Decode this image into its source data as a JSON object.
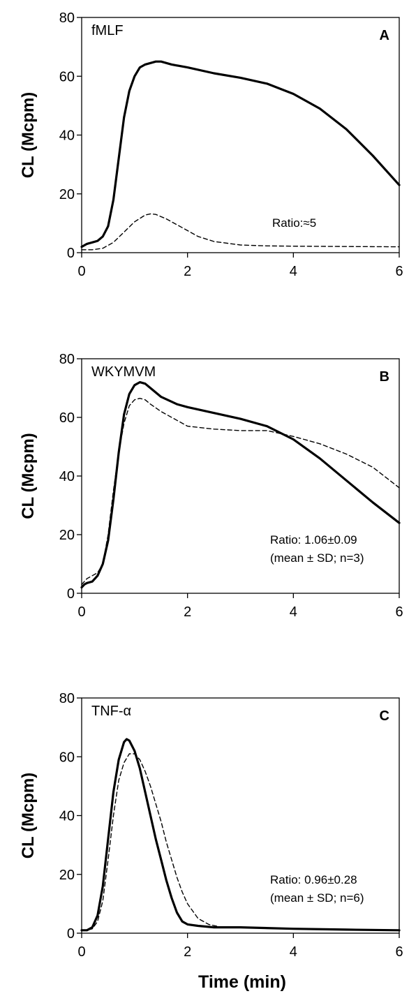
{
  "figure": {
    "xlabel": "Time (min)"
  },
  "chart_data": [
    {
      "type": "line",
      "panel": "A",
      "title": "fMLF",
      "ylabel": "CL (Mcpm)",
      "xlabel": "",
      "xlim": [
        0,
        6
      ],
      "ylim": [
        0,
        80
      ],
      "xticks": [
        0,
        2,
        4,
        6
      ],
      "yticks": [
        0,
        20,
        40,
        60,
        80
      ],
      "annotations": [
        "Ratio:≈5"
      ],
      "series": [
        {
          "style": "solid-thick",
          "x": [
            0,
            0.05,
            0.1,
            0.2,
            0.3,
            0.4,
            0.5,
            0.6,
            0.7,
            0.8,
            0.9,
            1.0,
            1.1,
            1.2,
            1.3,
            1.4,
            1.5,
            1.7,
            2.0,
            2.5,
            3.0,
            3.5,
            4.0,
            4.5,
            5.0,
            5.5,
            6.0
          ],
          "values": [
            2,
            2.5,
            3,
            3.5,
            4,
            5.5,
            9,
            18,
            32,
            46,
            55,
            60,
            63,
            64,
            64.5,
            65,
            65,
            64,
            63,
            61,
            59.5,
            57.5,
            54,
            49,
            42,
            33,
            23
          ]
        },
        {
          "style": "dashed",
          "x": [
            0,
            0.2,
            0.4,
            0.6,
            0.8,
            1.0,
            1.2,
            1.3,
            1.4,
            1.6,
            1.8,
            2.0,
            2.2,
            2.5,
            3.0,
            3.5,
            4.0,
            5.0,
            6.0
          ],
          "values": [
            1,
            1,
            1.5,
            3.5,
            7,
            10.5,
            12.8,
            13.2,
            13,
            11.5,
            9.5,
            7.5,
            5.5,
            3.8,
            2.6,
            2.3,
            2.2,
            2.1,
            2
          ]
        }
      ]
    },
    {
      "type": "line",
      "panel": "B",
      "title": "WKYMVM",
      "ylabel": "CL (Mcpm)",
      "xlabel": "",
      "xlim": [
        0,
        6
      ],
      "ylim": [
        0,
        80
      ],
      "xticks": [
        0,
        2,
        4,
        6
      ],
      "yticks": [
        0,
        20,
        40,
        60,
        80
      ],
      "annotations": [
        "Ratio: 1.06±0.09",
        "(mean ± SD; n=3)"
      ],
      "series": [
        {
          "style": "solid-thick",
          "x": [
            0,
            0.05,
            0.1,
            0.2,
            0.3,
            0.4,
            0.5,
            0.6,
            0.7,
            0.8,
            0.9,
            1.0,
            1.1,
            1.2,
            1.3,
            1.5,
            1.8,
            2.0,
            2.5,
            3.0,
            3.5,
            4.0,
            4.5,
            5.0,
            5.5,
            6.0
          ],
          "values": [
            2,
            3,
            3.5,
            4,
            6,
            10,
            18,
            32,
            48,
            61,
            68,
            71,
            72,
            71.5,
            70,
            67,
            64.5,
            63.5,
            61.5,
            59.5,
            57,
            52.5,
            46,
            38.5,
            31,
            24
          ]
        },
        {
          "style": "dashed",
          "x": [
            0,
            0.05,
            0.1,
            0.2,
            0.3,
            0.4,
            0.5,
            0.6,
            0.7,
            0.8,
            0.9,
            1.0,
            1.1,
            1.2,
            1.3,
            1.5,
            1.8,
            2.0,
            2.5,
            3.0,
            3.5,
            4.0,
            4.5,
            5.0,
            5.5,
            6.0
          ],
          "values": [
            3,
            4,
            5,
            6,
            7,
            10,
            20,
            35,
            48,
            58,
            64,
            66,
            66.5,
            66,
            64.5,
            62,
            59,
            57,
            56,
            55.5,
            55.5,
            53.5,
            51,
            47.5,
            43,
            36
          ]
        }
      ]
    },
    {
      "type": "line",
      "panel": "C",
      "title": "TNF-α",
      "ylabel": "CL (Mcpm)",
      "xlabel": "Time (min)",
      "xlim": [
        0,
        6
      ],
      "ylim": [
        0,
        80
      ],
      "xticks": [
        0,
        2,
        4,
        6
      ],
      "yticks": [
        0,
        20,
        40,
        60,
        80
      ],
      "annotations": [
        "Ratio: 0.96±0.28",
        "(mean ± SD; n=6)"
      ],
      "series": [
        {
          "style": "solid-thick",
          "x": [
            0,
            0.1,
            0.2,
            0.3,
            0.4,
            0.5,
            0.6,
            0.7,
            0.8,
            0.85,
            0.9,
            1.0,
            1.1,
            1.2,
            1.3,
            1.4,
            1.5,
            1.6,
            1.7,
            1.8,
            1.9,
            2.0,
            2.2,
            2.5,
            3.0,
            4.0,
            5.0,
            6.0
          ],
          "values": [
            1,
            1,
            2,
            6,
            16,
            32,
            48,
            59,
            65,
            66,
            65.5,
            62,
            56,
            48,
            40,
            32,
            25,
            18,
            12,
            7,
            4,
            3,
            2.5,
            2,
            2,
            1.5,
            1.2,
            1
          ]
        },
        {
          "style": "dashed",
          "x": [
            0,
            0.1,
            0.2,
            0.3,
            0.4,
            0.5,
            0.6,
            0.7,
            0.8,
            0.9,
            1.0,
            1.1,
            1.2,
            1.3,
            1.4,
            1.5,
            1.6,
            1.7,
            1.8,
            1.9,
            2.0,
            2.2,
            2.4,
            2.6,
            3.0,
            4.0,
            5.0,
            6.0
          ],
          "values": [
            1,
            1,
            1.5,
            4,
            11,
            25,
            40,
            52,
            58,
            61,
            61,
            59,
            55,
            50,
            44,
            38,
            31,
            25,
            19,
            14,
            10,
            5,
            3,
            2.2,
            2,
            1.5,
            1.2,
            1
          ]
        }
      ]
    }
  ]
}
